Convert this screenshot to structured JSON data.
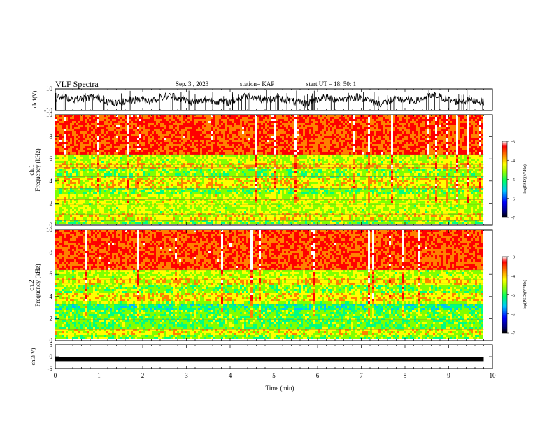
{
  "header": {
    "title": "VLF Spectra",
    "date": "Sep. 3  , 2023",
    "station": "station= KAP",
    "start": "start  UT  =   18: 50: 1"
  },
  "chart_data": [
    {
      "type": "line",
      "panel": "ch1-waveform",
      "ylabel": "ch.1(V)",
      "ylim": [
        -10,
        10
      ],
      "yticks": [
        10,
        -10
      ],
      "xlim": [
        0,
        10
      ],
      "note_data_extent_min": 9.8,
      "series": [
        {
          "values_x": [
            0,
            0.5,
            1,
            1.5,
            2,
            2.5,
            3,
            3.5,
            4,
            4.5,
            5,
            5.5,
            6,
            6.5,
            7,
            7.5,
            8,
            8.5,
            9,
            9.5,
            9.8
          ],
          "values_y": [
            3,
            2,
            4,
            1,
            3,
            0,
            -2,
            2,
            1,
            -1,
            2,
            1,
            0,
            2,
            -1,
            2,
            1,
            3,
            0,
            2,
            1
          ]
        }
      ]
    },
    {
      "type": "heatmap",
      "panel": "ch1-spectrogram",
      "ylabel": "ch.1\nFrequency (kHz)",
      "ylim": [
        0,
        10
      ],
      "yticks": [
        0,
        2,
        4,
        6,
        8,
        10
      ],
      "xlim": [
        0,
        10
      ],
      "colorbar": {
        "label": "log(PSD)(V²/Hz)",
        "range": [
          -7,
          -3
        ],
        "ticks": [
          -3,
          -4,
          -5,
          -6,
          -7
        ]
      }
    },
    {
      "type": "heatmap",
      "panel": "ch2-spectrogram",
      "ylabel": "ch.2\nFrequency (kHz)",
      "ylim": [
        0,
        10
      ],
      "yticks": [
        0,
        2,
        4,
        6,
        8,
        10
      ],
      "xlim": [
        0,
        10
      ],
      "colorbar": {
        "label": "log(PSD)(V²/Hz)",
        "range": [
          -7,
          -3
        ],
        "ticks": [
          -3,
          -4,
          -5,
          -6,
          -7
        ]
      }
    },
    {
      "type": "line",
      "panel": "ch3-waveform",
      "ylabel": "ch.3(V)",
      "ylim": [
        -5,
        5
      ],
      "yticks": [
        5,
        0,
        -5
      ],
      "xlim": [
        0,
        10
      ],
      "xlabel": "Time (min)",
      "xticks": [
        0,
        1,
        2,
        3,
        4,
        5,
        6,
        7,
        8,
        9,
        10
      ],
      "series": [
        {
          "values_x": [
            0,
            9.8
          ],
          "values_y": [
            -1,
            -1
          ]
        }
      ]
    }
  ],
  "colors": {
    "scale": [
      "#000080",
      "#0000ff",
      "#00c0ff",
      "#00ff80",
      "#80ff00",
      "#ffff00",
      "#ff8000",
      "#ff0000",
      "#ffffff"
    ]
  }
}
